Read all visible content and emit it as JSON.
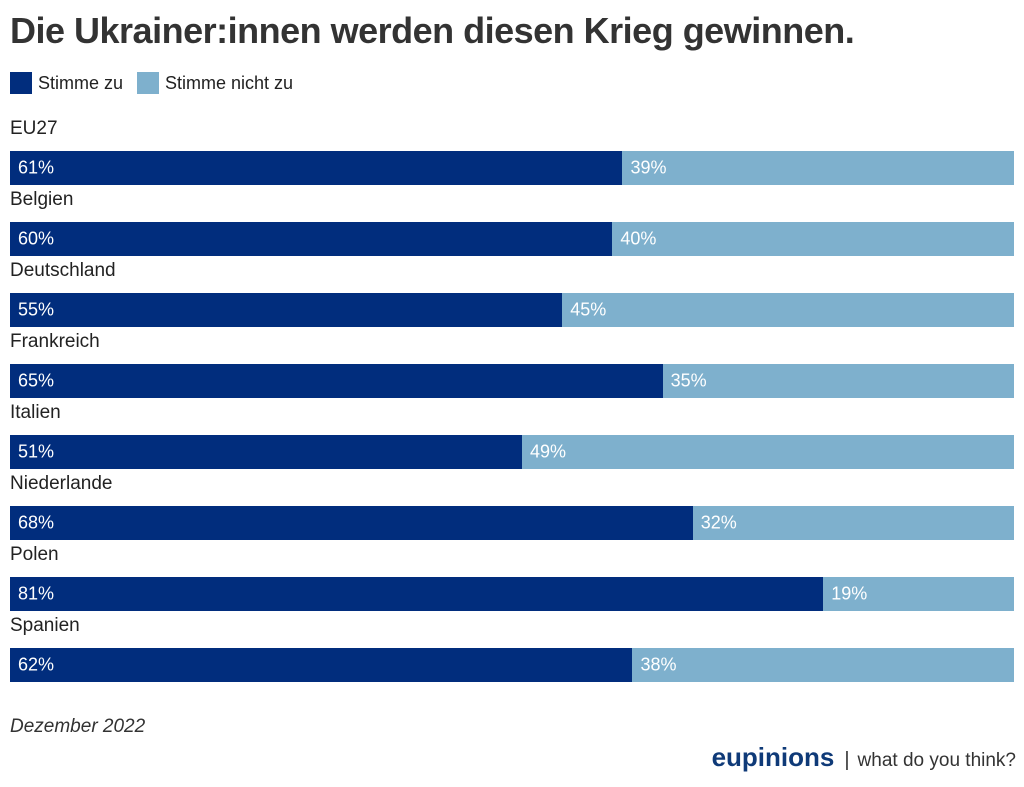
{
  "chart_data": {
    "type": "bar",
    "orientation": "horizontal",
    "stacked": true,
    "title": "Die Ukrainer:innen werden diesen Krieg gewinnen.",
    "categories": [
      "EU27",
      "Belgien",
      "Deutschland",
      "Frankreich",
      "Italien",
      "Niederlande",
      "Polen",
      "Spanien"
    ],
    "series": [
      {
        "name": "Stimme zu",
        "color": "#012d7d",
        "values": [
          61,
          60,
          55,
          65,
          51,
          68,
          81,
          62
        ]
      },
      {
        "name": "Stimme nicht zu",
        "color": "#7eb0cd",
        "values": [
          39,
          40,
          45,
          35,
          49,
          32,
          19,
          38
        ]
      }
    ],
    "value_suffix": "%",
    "xlim": [
      0,
      100
    ],
    "legend_position": "top-left",
    "grid": false
  },
  "footer": {
    "date": "Dezember 2022",
    "brand": "eupinions",
    "separator": "|",
    "tagline": "what do you think?"
  }
}
